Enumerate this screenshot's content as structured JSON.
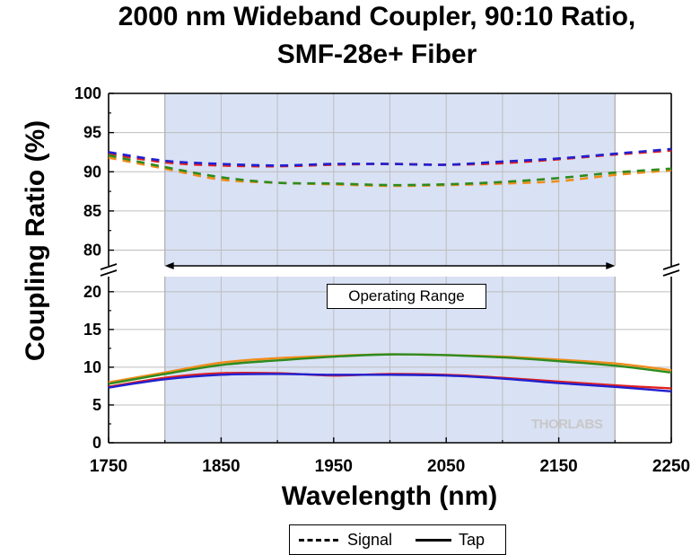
{
  "title": {
    "line1": "2000 nm Wideband Coupler, 90:10 Ratio,",
    "line2": "SMF-28e+ Fiber"
  },
  "axes": {
    "xlabel": "Wavelength (nm)",
    "ylabel": "Coupling Ratio (%)",
    "x_ticks": [
      "1750",
      "1850",
      "1950",
      "2050",
      "2150",
      "2250"
    ],
    "y_ticks_upper": [
      "80",
      "85",
      "90",
      "95",
      "100"
    ],
    "y_ticks_lower": [
      "0",
      "5",
      "10",
      "15",
      "20"
    ]
  },
  "annotation": {
    "operating_range": "Operating Range"
  },
  "watermark": "THORLABS",
  "legend": {
    "signal": "Signal",
    "tap": "Tap"
  },
  "chart_data": {
    "type": "line",
    "title": "2000 nm Wideband Coupler, 90:10 Ratio, SMF-28e+ Fiber",
    "xlabel": "Wavelength (nm)",
    "ylabel": "Coupling Ratio (%)",
    "xlim": [
      1750,
      2250
    ],
    "ylim_upper": [
      78,
      100
    ],
    "ylim_lower": [
      0,
      22
    ],
    "broken_y_axis": true,
    "grid": true,
    "legend_position": "bottom-center",
    "operating_range": [
      1800,
      2200
    ],
    "x": [
      1750,
      1800,
      1850,
      1900,
      1950,
      2000,
      2050,
      2100,
      2150,
      2200,
      2250
    ],
    "series": [
      {
        "name": "Signal",
        "style": "dashed",
        "color": "#e02020",
        "values": [
          92.3,
          91.2,
          90.8,
          90.7,
          90.9,
          91.0,
          90.9,
          91.1,
          91.6,
          92.2,
          92.7
        ]
      },
      {
        "name": "Signal",
        "style": "dashed",
        "color": "#2020d0",
        "values": [
          92.5,
          91.4,
          91.0,
          90.8,
          91.0,
          91.0,
          90.9,
          91.3,
          91.7,
          92.3,
          92.9
        ]
      },
      {
        "name": "Signal",
        "style": "dashed",
        "color": "#f08c1a",
        "values": [
          91.8,
          90.4,
          89.0,
          88.6,
          88.4,
          88.2,
          88.3,
          88.5,
          88.8,
          89.6,
          90.2
        ]
      },
      {
        "name": "Signal",
        "style": "dashed",
        "color": "#2e8b1e",
        "values": [
          92.1,
          90.6,
          89.3,
          88.6,
          88.5,
          88.3,
          88.4,
          88.7,
          89.2,
          89.9,
          90.4
        ]
      },
      {
        "name": "Tap",
        "style": "solid",
        "color": "#e02020",
        "values": [
          7.4,
          8.6,
          9.2,
          9.2,
          8.9,
          9.1,
          9.0,
          8.6,
          8.1,
          7.6,
          7.2
        ]
      },
      {
        "name": "Tap",
        "style": "solid",
        "color": "#2020d0",
        "values": [
          7.3,
          8.4,
          9.0,
          9.1,
          9.0,
          9.0,
          8.9,
          8.5,
          7.9,
          7.4,
          6.8
        ]
      },
      {
        "name": "Tap",
        "style": "solid",
        "color": "#f08c1a",
        "values": [
          8.0,
          9.3,
          10.6,
          11.2,
          11.5,
          11.7,
          11.6,
          11.4,
          11.0,
          10.5,
          9.6
        ]
      },
      {
        "name": "Tap",
        "style": "solid",
        "color": "#2e8b1e",
        "values": [
          7.8,
          9.1,
          10.3,
          10.9,
          11.4,
          11.7,
          11.6,
          11.3,
          10.8,
          10.2,
          9.3
        ]
      }
    ]
  }
}
